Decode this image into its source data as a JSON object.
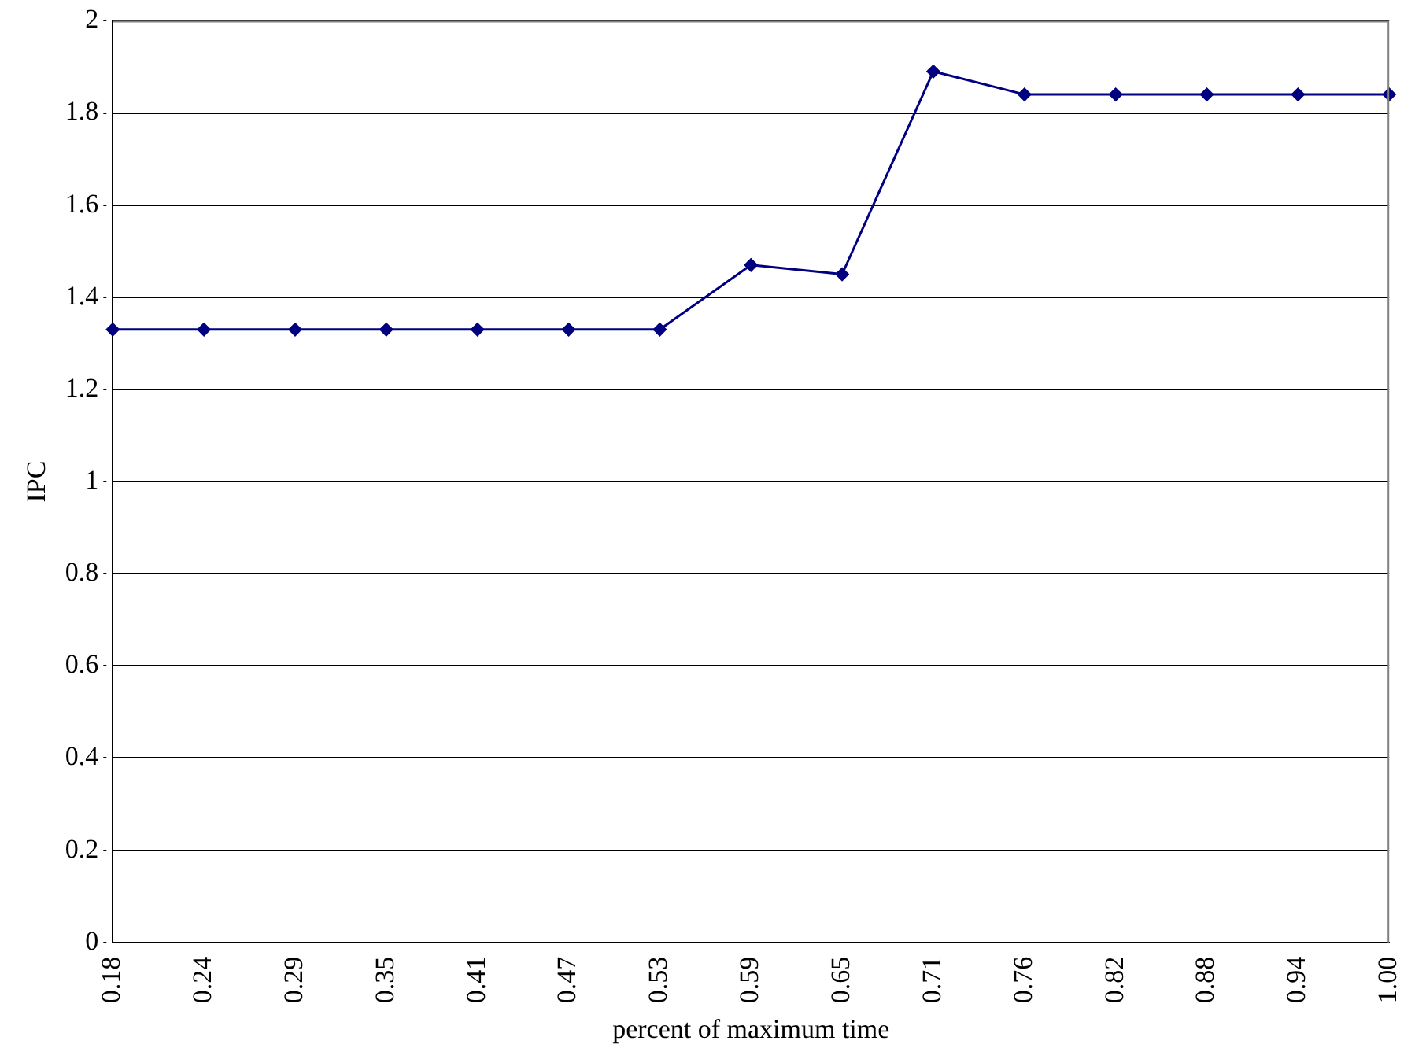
{
  "chart_data": {
    "type": "line",
    "xlabel": "percent of maximum time",
    "ylabel": "IPC",
    "categories": [
      "0.18",
      "0.24",
      "0.29",
      "0.35",
      "0.41",
      "0.47",
      "0.53",
      "0.59",
      "0.65",
      "0.71",
      "0.76",
      "0.82",
      "0.88",
      "0.94",
      "1.00"
    ],
    "series": [
      {
        "color": "#000080",
        "values": [
          1.33,
          1.33,
          1.33,
          1.33,
          1.33,
          1.33,
          1.33,
          1.47,
          1.45,
          1.89,
          1.84,
          1.84,
          1.84,
          1.84,
          1.84
        ]
      }
    ],
    "ylim": [
      0,
      2
    ],
    "yticks": [
      0,
      0.2,
      0.4,
      0.6,
      0.8,
      1,
      1.2,
      1.4,
      1.6,
      1.8,
      2
    ],
    "grid": "y",
    "legend": false,
    "marker": "diamond",
    "line_style": "solid"
  }
}
